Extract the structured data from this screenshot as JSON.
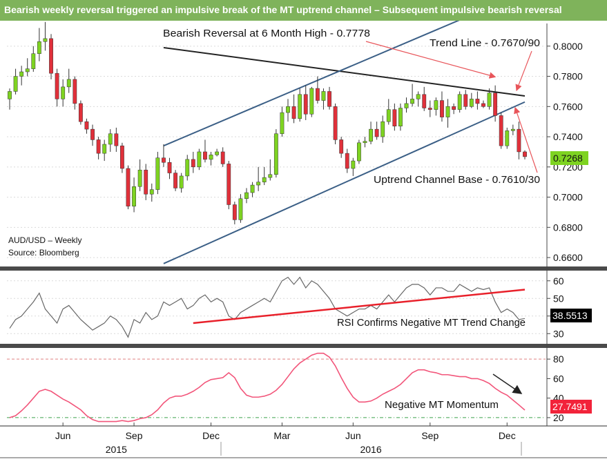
{
  "title": "Bearish weekly reversal triggered an impulsive break of the MT uptrend channel – Subsequent impulsive bearish reversal",
  "colors": {
    "title_bar": "#7fb35b",
    "candle_up": "#7ed321",
    "candle_down": "#e0303a",
    "trend_line": "#222222",
    "channel": "#3b5f86",
    "annotation_arrow": "#e8555a",
    "rsi": "#666666",
    "rsi_trend": "#e8202a",
    "momentum": "#f2557a",
    "momentum_ref_top": "#e08080",
    "momentum_ref_bottom": "#3aa04a",
    "last_price_tag": "#7ed321",
    "rsi_tag": "#000000",
    "mom_tag": "#f2233a"
  },
  "chart_data": [
    {
      "type": "candlestick",
      "name": "price",
      "instrument_label": "AUD/USD – Weekly",
      "source_label": "Source: Bloomberg",
      "ylim": [
        0.655,
        0.815
      ],
      "y_ticks": [
        "0.8000",
        "0.7800",
        "0.7600",
        "0.7400",
        "0.7200",
        "0.7000",
        "0.6800",
        "0.6600"
      ],
      "y_tick_values": [
        0.8,
        0.78,
        0.76,
        0.74,
        0.72,
        0.7,
        0.68,
        0.66
      ],
      "last_value_label": "0.7268",
      "last_value": 0.7268,
      "ohlc": [
        [
          0.765,
          0.772,
          0.758,
          0.77
        ],
        [
          0.77,
          0.785,
          0.768,
          0.78
        ],
        [
          0.78,
          0.787,
          0.774,
          0.783
        ],
        [
          0.783,
          0.792,
          0.78,
          0.785
        ],
        [
          0.785,
          0.8,
          0.783,
          0.795
        ],
        [
          0.795,
          0.812,
          0.79,
          0.803
        ],
        [
          0.803,
          0.816,
          0.797,
          0.805
        ],
        [
          0.805,
          0.808,
          0.778,
          0.782
        ],
        [
          0.782,
          0.785,
          0.76,
          0.765
        ],
        [
          0.765,
          0.778,
          0.76,
          0.773
        ],
        [
          0.773,
          0.785,
          0.769,
          0.778
        ],
        [
          0.778,
          0.78,
          0.758,
          0.762
        ],
        [
          0.762,
          0.764,
          0.748,
          0.75
        ],
        [
          0.75,
          0.752,
          0.742,
          0.745
        ],
        [
          0.745,
          0.748,
          0.734,
          0.738
        ],
        [
          0.738,
          0.74,
          0.725,
          0.729
        ],
        [
          0.729,
          0.738,
          0.724,
          0.735
        ],
        [
          0.735,
          0.745,
          0.73,
          0.742
        ],
        [
          0.742,
          0.746,
          0.73,
          0.734
        ],
        [
          0.734,
          0.736,
          0.716,
          0.719
        ],
        [
          0.719,
          0.721,
          0.692,
          0.694
        ],
        [
          0.694,
          0.713,
          0.69,
          0.707
        ],
        [
          0.707,
          0.725,
          0.704,
          0.718
        ],
        [
          0.718,
          0.722,
          0.698,
          0.702
        ],
        [
          0.702,
          0.709,
          0.697,
          0.705
        ],
        [
          0.705,
          0.73,
          0.702,
          0.726
        ],
        [
          0.726,
          0.735,
          0.72,
          0.723
        ],
        [
          0.723,
          0.726,
          0.712,
          0.716
        ],
        [
          0.716,
          0.718,
          0.704,
          0.706
        ],
        [
          0.706,
          0.716,
          0.703,
          0.714
        ],
        [
          0.714,
          0.728,
          0.711,
          0.725
        ],
        [
          0.725,
          0.73,
          0.716,
          0.72
        ],
        [
          0.72,
          0.732,
          0.718,
          0.73
        ],
        [
          0.73,
          0.738,
          0.723,
          0.725
        ],
        [
          0.725,
          0.73,
          0.721,
          0.728
        ],
        [
          0.728,
          0.732,
          0.727,
          0.73
        ],
        [
          0.73,
          0.733,
          0.72,
          0.722
        ],
        [
          0.722,
          0.724,
          0.692,
          0.695
        ],
        [
          0.695,
          0.697,
          0.682,
          0.685
        ],
        [
          0.685,
          0.702,
          0.683,
          0.699
        ],
        [
          0.699,
          0.706,
          0.696,
          0.703
        ],
        [
          0.703,
          0.71,
          0.7,
          0.708
        ],
        [
          0.708,
          0.72,
          0.704,
          0.71
        ],
        [
          0.71,
          0.72,
          0.708,
          0.713
        ],
        [
          0.713,
          0.725,
          0.711,
          0.715
        ],
        [
          0.715,
          0.745,
          0.713,
          0.742
        ],
        [
          0.742,
          0.76,
          0.74,
          0.756
        ],
        [
          0.756,
          0.765,
          0.75,
          0.76
        ],
        [
          0.76,
          0.768,
          0.749,
          0.752
        ],
        [
          0.752,
          0.772,
          0.75,
          0.768
        ],
        [
          0.768,
          0.774,
          0.751,
          0.755
        ],
        [
          0.755,
          0.773,
          0.753,
          0.772
        ],
        [
          0.772,
          0.78,
          0.762,
          0.764
        ],
        [
          0.764,
          0.772,
          0.758,
          0.77
        ],
        [
          0.77,
          0.773,
          0.758,
          0.76
        ],
        [
          0.76,
          0.762,
          0.735,
          0.738
        ],
        [
          0.738,
          0.74,
          0.726,
          0.729
        ],
        [
          0.729,
          0.732,
          0.716,
          0.719
        ],
        [
          0.719,
          0.726,
          0.714,
          0.724
        ],
        [
          0.724,
          0.738,
          0.722,
          0.736
        ],
        [
          0.736,
          0.74,
          0.733,
          0.737
        ],
        [
          0.737,
          0.75,
          0.735,
          0.745
        ],
        [
          0.745,
          0.75,
          0.738,
          0.74
        ],
        [
          0.74,
          0.754,
          0.736,
          0.75
        ],
        [
          0.75,
          0.765,
          0.748,
          0.758
        ],
        [
          0.758,
          0.762,
          0.744,
          0.747
        ],
        [
          0.747,
          0.762,
          0.744,
          0.759
        ],
        [
          0.759,
          0.766,
          0.756,
          0.762
        ],
        [
          0.762,
          0.775,
          0.76,
          0.765
        ],
        [
          0.765,
          0.77,
          0.76,
          0.768
        ],
        [
          0.768,
          0.773,
          0.757,
          0.759
        ],
        [
          0.759,
          0.764,
          0.753,
          0.758
        ],
        [
          0.758,
          0.766,
          0.754,
          0.764
        ],
        [
          0.764,
          0.77,
          0.75,
          0.753
        ],
        [
          0.753,
          0.765,
          0.746,
          0.76
        ],
        [
          0.76,
          0.762,
          0.755,
          0.758
        ],
        [
          0.758,
          0.77,
          0.756,
          0.768
        ],
        [
          0.768,
          0.771,
          0.758,
          0.76
        ],
        [
          0.76,
          0.769,
          0.759,
          0.765
        ],
        [
          0.765,
          0.77,
          0.758,
          0.762
        ],
        [
          0.762,
          0.764,
          0.759,
          0.76
        ],
        [
          0.76,
          0.772,
          0.758,
          0.769
        ],
        [
          0.769,
          0.774,
          0.75,
          0.754
        ],
        [
          0.754,
          0.756,
          0.732,
          0.734
        ],
        [
          0.734,
          0.746,
          0.732,
          0.744
        ],
        [
          0.744,
          0.748,
          0.741,
          0.745
        ],
        [
          0.745,
          0.75,
          0.725,
          0.73
        ],
        [
          0.73,
          0.731,
          0.725,
          0.7268
        ]
      ],
      "annotations": [
        {
          "text": "Bearish Reversal at 6 Month High - 0.7778",
          "target_bar": 82,
          "target_value": 0.7778
        },
        {
          "text": "Trend Line - 0.7670/90",
          "target_bar": 87,
          "target_value": 0.767
        },
        {
          "text": "Uptrend Channel Base - 0.7610/30",
          "target_bar": 87,
          "target_value": 0.762
        }
      ],
      "lines": [
        {
          "name": "trend-line",
          "from": [
            26,
            0.799
          ],
          "to": [
            87,
            0.767
          ]
        },
        {
          "name": "channel-top",
          "from": [
            26,
            0.734
          ],
          "to": [
            77,
            0.819
          ]
        },
        {
          "name": "channel-base",
          "from": [
            26,
            0.656
          ],
          "to": [
            87,
            0.763
          ]
        }
      ]
    },
    {
      "type": "line",
      "name": "rsi",
      "ylim": [
        25,
        65
      ],
      "y_ticks": [
        "60",
        "50",
        "40",
        "30"
      ],
      "y_tick_values": [
        60,
        50,
        40,
        30
      ],
      "last_value_label": "38.5513",
      "last_value": 38.5513,
      "annotation": "RSI Confirms Negative MT Trend Change",
      "values": [
        33,
        38,
        40,
        44,
        48,
        53,
        44,
        40,
        36,
        44,
        46,
        42,
        38,
        35,
        32,
        34,
        36,
        40,
        38,
        34,
        28,
        38,
        36,
        42,
        38,
        40,
        48,
        46,
        48,
        50,
        44,
        46,
        50,
        52,
        48,
        50,
        48,
        40,
        38,
        42,
        44,
        46,
        48,
        50,
        48,
        54,
        60,
        62,
        58,
        62,
        56,
        60,
        58,
        54,
        50,
        44,
        42,
        40,
        42,
        44,
        44,
        46,
        44,
        48,
        52,
        48,
        52,
        56,
        58,
        58,
        56,
        52,
        56,
        56,
        54,
        54,
        58,
        56,
        54,
        56,
        55,
        56,
        48,
        42,
        44,
        42,
        38,
        38.5513
      ],
      "trend_line": {
        "from": [
          31,
          36
        ],
        "to": [
          87,
          55
        ]
      }
    },
    {
      "type": "line",
      "name": "momentum",
      "ylim": [
        15,
        90
      ],
      "y_ticks": [
        "80",
        "60",
        "40",
        "20"
      ],
      "y_tick_values": [
        80,
        60,
        40,
        20
      ],
      "last_value_label": "27.7491",
      "last_value": 27.7491,
      "annotation": "Negative MT Momentum",
      "reference_levels": [
        80,
        20
      ],
      "values": [
        20,
        22,
        27,
        33,
        40,
        47,
        49,
        47,
        43,
        39,
        36,
        32,
        28,
        22,
        18,
        16,
        16,
        16,
        16,
        17,
        16,
        17,
        19,
        20,
        23,
        28,
        35,
        40,
        42,
        42,
        44,
        47,
        51,
        56,
        59,
        60,
        61,
        66,
        61,
        50,
        43,
        41,
        41,
        42,
        44,
        48,
        54,
        62,
        70,
        76,
        80,
        84,
        86,
        86,
        82,
        73,
        61,
        50,
        41,
        36,
        36,
        37,
        40,
        44,
        47,
        50,
        54,
        60,
        66,
        69,
        69,
        67,
        66,
        64,
        64,
        63,
        62,
        62,
        60,
        60,
        58,
        55,
        50,
        46,
        43,
        38,
        33,
        27.7491
      ]
    }
  ],
  "x_axis": {
    "month_labels": [
      "Jun",
      "Sep",
      "Dec",
      "Mar",
      "Jun",
      "Sep",
      "Dec"
    ],
    "month_bars": [
      9,
      21,
      34,
      46,
      58,
      71,
      84
    ],
    "year_labels": [
      "2015",
      "2016"
    ],
    "year_bars": [
      18,
      61
    ]
  }
}
